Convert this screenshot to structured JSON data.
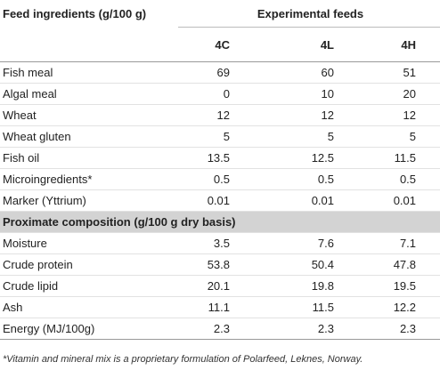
{
  "header": {
    "title": "Feed ingredients (g/100 g)",
    "group": "Experimental feeds",
    "columns": [
      "4C",
      "4L",
      "4H"
    ]
  },
  "sections": [
    {
      "rows": [
        [
          "Fish meal",
          "69",
          "60",
          "51"
        ],
        [
          "Algal meal",
          "0",
          "10",
          "20"
        ],
        [
          "Wheat",
          "12",
          "12",
          "12"
        ],
        [
          "Wheat gluten",
          "5",
          "5",
          "5"
        ],
        [
          "Fish oil",
          "13.5",
          "12.5",
          "11.5"
        ],
        [
          "Microingredients*",
          "0.5",
          "0.5",
          "0.5"
        ],
        [
          "Marker (Yttrium)",
          "0.01",
          "0.01",
          "0.01"
        ]
      ]
    },
    {
      "title": "Proximate composition (g/100 g dry basis)",
      "rows": [
        [
          "Moisture",
          "3.5",
          "7.6",
          "7.1"
        ],
        [
          "Crude protein",
          "53.8",
          "50.4",
          "47.8"
        ],
        [
          "Crude lipid",
          "20.1",
          "19.8",
          "19.5"
        ],
        [
          "Ash",
          "11.1",
          "11.5",
          "12.2"
        ],
        [
          "Energy (MJ/100g)",
          "2.3",
          "2.3",
          "2.3"
        ]
      ]
    }
  ],
  "footnote": "*Vitamin and mineral mix is a proprietary formulation of Polarfeed, Leknes, Norway."
}
